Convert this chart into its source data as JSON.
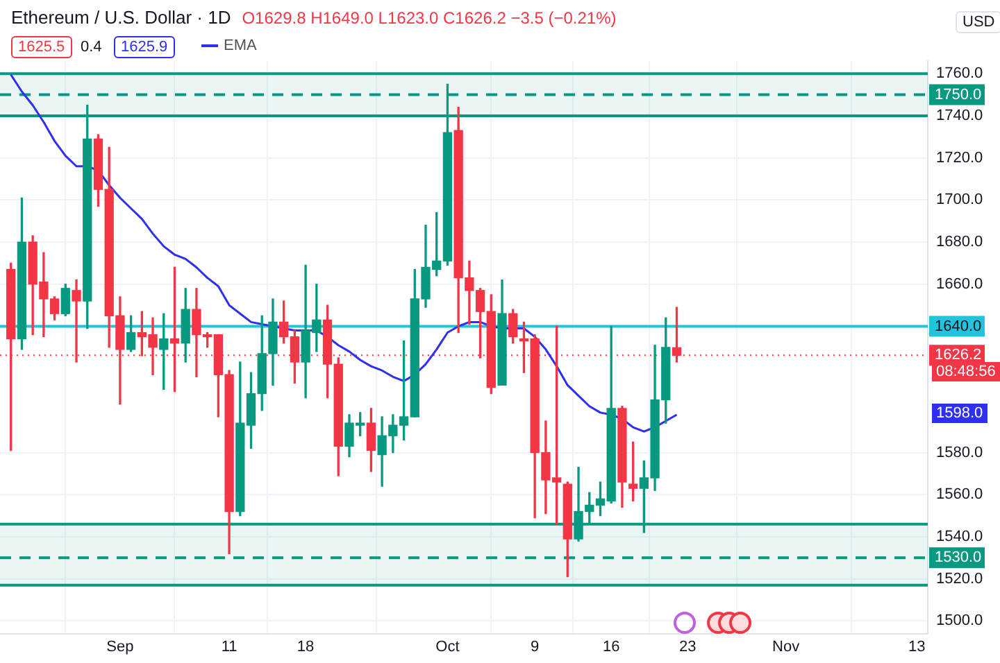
{
  "chart_data": {
    "type": "candlestick",
    "title": "Ethereum / U.S. Dollar · 1D",
    "subtitle": "O1629.8 H1649.0 L1623.0 C1626.2 −3.5 (−0.21%)",
    "annotations": [
      "1625.5",
      "0.4",
      "1625.9",
      "USD",
      "08:48:56",
      "1598.0"
    ],
    "series": [
      {
        "x": [
          "--08-22",
          "--08-23",
          "--08-24",
          "--08-25",
          "--08-26",
          "--08-27",
          "--08-28",
          "--08-29",
          "--08-30",
          "--08-31",
          "--09-01",
          "--09-02",
          "--09-03",
          "--09-04",
          "--09-05",
          "--09-06",
          "--09-07",
          "--09-08",
          "--09-09",
          "--09-10",
          "--09-11",
          "--09-12",
          "--09-13",
          "--09-14",
          "--09-15",
          "--09-16",
          "--09-17",
          "--09-18",
          "--09-19",
          "--09-20",
          "--09-21",
          "--09-22",
          "--09-23",
          "--09-24",
          "--09-25",
          "--09-26",
          "--09-27",
          "--09-28",
          "--09-29",
          "--09-30",
          "--10-01",
          "--10-02",
          "--10-03",
          "--10-04",
          "--10-05",
          "--10-06",
          "--10-07",
          "--10-08",
          "--10-09",
          "--10-10",
          "--10-11",
          "--10-12",
          "--10-13",
          "--10-14",
          "--10-15",
          "--10-16",
          "--10-17",
          "--10-18",
          "--10-19",
          "--10-20",
          "--10-21",
          "--10-22"
        ],
        "ohlc": [
          [
            1667,
            1670,
            1581,
            1634
          ],
          [
            1634,
            1701,
            1629,
            1680
          ],
          [
            1680,
            1683,
            1636,
            1660
          ],
          [
            1661,
            1675,
            1635,
            1653
          ],
          [
            1653,
            1654,
            1643,
            1646
          ],
          [
            1646,
            1660,
            1645,
            1658
          ],
          [
            1657,
            1662,
            1623,
            1652
          ],
          [
            1652,
            1745,
            1639,
            1729
          ],
          [
            1729,
            1731,
            1697,
            1705
          ],
          [
            1705,
            1725,
            1630,
            1645
          ],
          [
            1645,
            1654,
            1603,
            1629
          ],
          [
            1629,
            1645,
            1628,
            1637
          ],
          [
            1637,
            1647,
            1626,
            1635
          ],
          [
            1636,
            1644,
            1617,
            1630
          ],
          [
            1629,
            1646,
            1610,
            1634
          ],
          [
            1634,
            1668,
            1609,
            1632
          ],
          [
            1632,
            1658,
            1623,
            1648
          ],
          [
            1648,
            1658,
            1616,
            1636
          ],
          [
            1636,
            1637,
            1630,
            1635
          ],
          [
            1636,
            1636,
            1597,
            1617
          ],
          [
            1617,
            1619,
            1532,
            1552
          ],
          [
            1552,
            1623,
            1550,
            1594
          ],
          [
            1593,
            1618,
            1582,
            1608
          ],
          [
            1608,
            1645,
            1600,
            1627
          ],
          [
            1627,
            1653,
            1612,
            1642
          ],
          [
            1642,
            1652,
            1632,
            1635
          ],
          [
            1635,
            1638,
            1613,
            1623
          ],
          [
            1623,
            1669,
            1606,
            1638
          ],
          [
            1637,
            1660,
            1628,
            1643
          ],
          [
            1643,
            1650,
            1606,
            1622
          ],
          [
            1622,
            1625,
            1569,
            1583
          ],
          [
            1583,
            1598,
            1578,
            1594
          ],
          [
            1593,
            1599,
            1588,
            1594
          ],
          [
            1594,
            1601,
            1571,
            1581
          ],
          [
            1579,
            1597,
            1564,
            1588
          ],
          [
            1588,
            1598,
            1580,
            1593
          ],
          [
            1593,
            1633,
            1586,
            1597
          ],
          [
            1597,
            1667,
            1597,
            1653
          ],
          [
            1653,
            1688,
            1649,
            1668
          ],
          [
            1667,
            1694,
            1664,
            1671
          ],
          [
            1671,
            1755,
            1669,
            1732
          ],
          [
            1733,
            1744,
            1637,
            1663
          ],
          [
            1663,
            1671,
            1641,
            1657
          ],
          [
            1657,
            1658,
            1625,
            1647
          ],
          [
            1647,
            1655,
            1608,
            1611
          ],
          [
            1612,
            1662,
            1612,
            1646
          ],
          [
            1646,
            1648,
            1632,
            1635
          ],
          [
            1634,
            1642,
            1618,
            1633
          ],
          [
            1634,
            1636,
            1549,
            1580
          ],
          [
            1580,
            1595,
            1551,
            1567
          ],
          [
            1568,
            1640,
            1546,
            1566
          ],
          [
            1565,
            1566,
            1521,
            1539
          ],
          [
            1539,
            1573,
            1538,
            1552
          ],
          [
            1552,
            1561,
            1546,
            1555
          ],
          [
            1555,
            1566,
            1550,
            1558
          ],
          [
            1557,
            1640,
            1556,
            1601
          ],
          [
            1601,
            1602,
            1554,
            1566
          ],
          [
            1565,
            1585,
            1557,
            1563
          ],
          [
            1563,
            1576,
            1542,
            1568
          ],
          [
            1568,
            1631,
            1562,
            1605
          ],
          [
            1605,
            1644,
            1594,
            1630
          ],
          [
            1629.8,
            1649.0,
            1623.0,
            1626.2
          ]
        ],
        "colors": [
          "#f23645",
          "#089981",
          "#f23645",
          "#f23645",
          "#f23645",
          "#089981",
          "#f23645",
          "#089981",
          "#f23645",
          "#f23645",
          "#f23645",
          "#089981",
          "#f23645",
          "#f23645",
          "#089981",
          "#f23645",
          "#089981",
          "#f23645",
          "#f23645",
          "#f23645",
          "#f23645",
          "#089981",
          "#089981",
          "#089981",
          "#089981",
          "#f23645",
          "#f23645",
          "#089981",
          "#089981",
          "#f23645",
          "#f23645",
          "#089981",
          "#089981",
          "#f23645",
          "#089981",
          "#089981",
          "#089981",
          "#089981",
          "#089981",
          "#089981",
          "#089981",
          "#f23645",
          "#f23645",
          "#f23645",
          "#f23645",
          "#089981",
          "#f23645",
          "#f23645",
          "#f23645",
          "#f23645",
          "#f23645",
          "#f23645",
          "#089981",
          "#089981",
          "#089981",
          "#089981",
          "#f23645",
          "#f23645",
          "#089981",
          "#089981",
          "#089981",
          "#f23645"
        ]
      },
      {
        "type": "line",
        "name": "EMA",
        "color": "#2e2ef5",
        "x": [
          "--08-22",
          "--08-23",
          "--08-24",
          "--08-25",
          "--08-26",
          "--08-27",
          "--08-28",
          "--08-29",
          "--08-30",
          "--08-31",
          "--09-01",
          "--09-02",
          "--09-03",
          "--09-04",
          "--09-05",
          "--09-06",
          "--09-07",
          "--09-08",
          "--09-09",
          "--09-10",
          "--09-11",
          "--09-12",
          "--09-13",
          "--09-14",
          "--09-15",
          "--09-16",
          "--09-17",
          "--09-18",
          "--09-19",
          "--09-20",
          "--09-21",
          "--09-22",
          "--09-23",
          "--09-24",
          "--09-25",
          "--09-26",
          "--09-27",
          "--09-28",
          "--09-29",
          "--09-30",
          "--10-01",
          "--10-02",
          "--10-03",
          "--10-04",
          "--10-05",
          "--10-06",
          "--10-07",
          "--10-08",
          "--10-09",
          "--10-10",
          "--10-11",
          "--10-12",
          "--10-13",
          "--10-14",
          "--10-15",
          "--10-16",
          "--10-17",
          "--10-18",
          "--10-19",
          "--10-20",
          "--10-21",
          "--10-22"
        ],
        "values": [
          1759.5,
          1751.5,
          1745,
          1737,
          1728,
          1721,
          1716,
          1716,
          1714,
          1707,
          1701,
          1696,
          1691,
          1684,
          1678,
          1674,
          1672,
          1668,
          1663,
          1659,
          1650,
          1646,
          1642,
          1641,
          1640,
          1639,
          1638,
          1638,
          1638,
          1635,
          1631,
          1628,
          1624,
          1621,
          1619,
          1616,
          1614,
          1617,
          1622,
          1629,
          1637,
          1640,
          1642,
          1642,
          1640,
          1639,
          1639,
          1639,
          1635,
          1629,
          1621,
          1612,
          1607,
          1602,
          1599,
          1598,
          1596,
          1592,
          1590,
          1592,
          1595,
          1598
        ]
      }
    ],
    "xlim": [
      "--08-21",
      "--11-14"
    ],
    "xticks": [
      {
        "value": "--09-01",
        "label": "Sep"
      },
      {
        "value": "--09-11",
        "label": "11"
      },
      {
        "value": "--09-18",
        "label": "18"
      },
      {
        "value": "--10-01",
        "label": "Oct"
      },
      {
        "value": "--10-09",
        "label": "9"
      },
      {
        "value": "--10-16",
        "label": "16"
      },
      {
        "value": "--10-23",
        "label": "23"
      },
      {
        "value": "--11-01",
        "label": "Nov"
      },
      {
        "value": "--11-13",
        "label": "13"
      }
    ],
    "ylim": [
      1494,
      1766
    ],
    "yticks": [
      {
        "value": 1500,
        "label": "1500.0"
      },
      {
        "value": 1520,
        "label": "1520.0"
      },
      {
        "value": 1540,
        "label": "1540.0"
      },
      {
        "value": 1560,
        "label": "1560.0"
      },
      {
        "value": 1580,
        "label": "1580.0"
      },
      {
        "value": 1660,
        "label": "1660.0"
      },
      {
        "value": 1680,
        "label": "1680.0"
      },
      {
        "value": 1700,
        "label": "1700.0"
      },
      {
        "value": 1720,
        "label": "1720.0"
      },
      {
        "value": 1740,
        "label": "1740.0"
      },
      {
        "value": 1760,
        "label": "1760.0"
      }
    ],
    "ref_lines": [
      {
        "axis": "y",
        "value": 1750,
        "label": "1750.0",
        "color": "#089981",
        "line_style": "dashed"
      },
      {
        "axis": "y",
        "value": 1530,
        "label": "1530.0",
        "color": "#089981",
        "line_style": "dashed"
      },
      {
        "axis": "y",
        "value": 1640,
        "label": "1640.0",
        "color": "#22c3dd",
        "line_style": "solid"
      },
      {
        "axis": "y",
        "value": 1626.2,
        "label": "1626.2",
        "color": "#f23645",
        "line_style": "dotted"
      }
    ],
    "bands": [
      {
        "axis": "y",
        "from": 1740,
        "to": 1760,
        "color": "#089981"
      },
      {
        "axis": "y",
        "from": 1517,
        "to": 1546,
        "color": "#089981"
      }
    ],
    "grid": true,
    "legend": "top left",
    "marker": "none"
  }
}
